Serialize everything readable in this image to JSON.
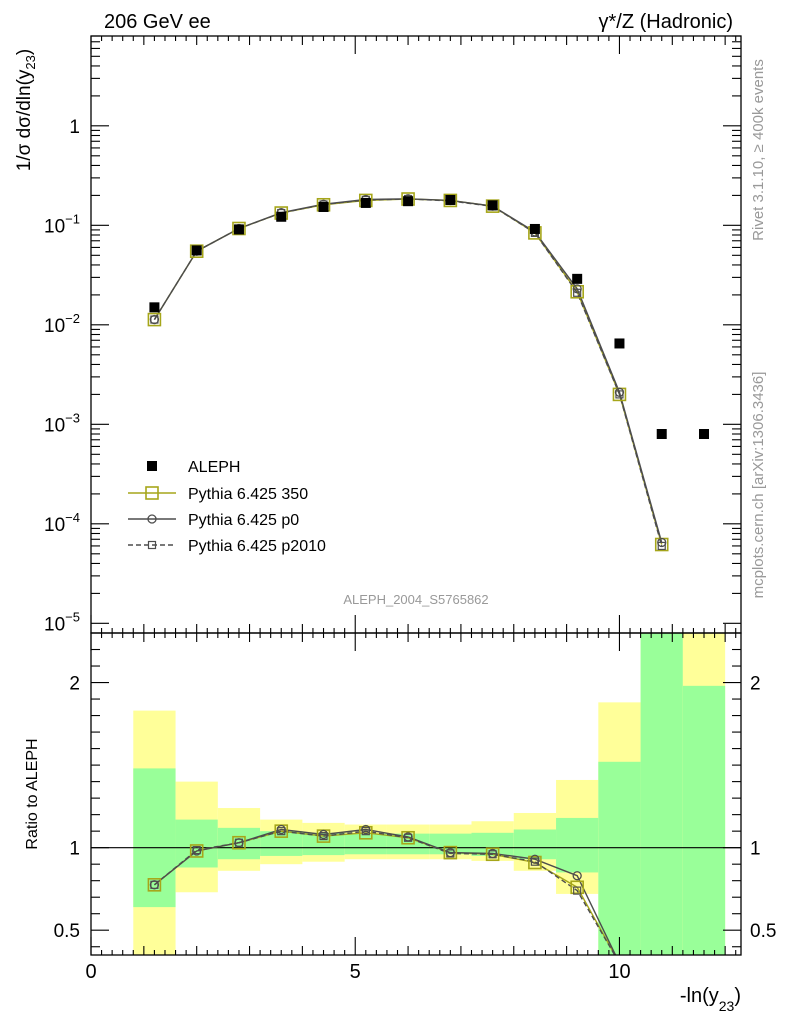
{
  "header": {
    "left": "206 GeV ee",
    "right": "γ*/Z (Hadronic)"
  },
  "side_texts": {
    "rivet": "Rivet 3.1.10, ≥ 400k events",
    "mcplots": "mcplots.cern.ch [arXiv:1306.3436]"
  },
  "watermark": "ALEPH_2004_S5765862",
  "colors": {
    "data": "#000000",
    "p350": "#a6a61a",
    "p0": "#4d4d4d",
    "p2010": "#4d4d4d",
    "band_inner": "#99ff99",
    "band_outer": "#ffff99"
  },
  "chart_data": [
    {
      "type": "line",
      "panel": "main",
      "ylabel": "1/σ  dσ/dln(y23)",
      "yscale": "log",
      "ylim": [
        8e-06,
        8
      ],
      "xlim": [
        0,
        12.3
      ],
      "y_ticks": [
        {
          "value": 1e-05,
          "label": "10",
          "exp": "−5"
        },
        {
          "value": 0.0001,
          "label": "10",
          "exp": "−4"
        },
        {
          "value": 0.001,
          "label": "10",
          "exp": "−3"
        },
        {
          "value": 0.01,
          "label": "10",
          "exp": "−2"
        },
        {
          "value": 0.1,
          "label": "10",
          "exp": "−1"
        },
        {
          "value": 1,
          "label": "1",
          "exp": ""
        }
      ],
      "series": [
        {
          "name": "ALEPH",
          "key": "data",
          "marker": "filled-square",
          "x": [
            1.2,
            2.0,
            2.8,
            3.6,
            4.4,
            5.2,
            6.0,
            6.8,
            7.6,
            8.4,
            9.2,
            10.0,
            10.8,
            11.6
          ],
          "values": [
            0.015,
            0.056,
            0.091,
            0.122,
            0.153,
            0.168,
            0.175,
            0.18,
            0.159,
            0.092,
            0.029,
            0.0065,
            0.0008,
            0.0008
          ]
        },
        {
          "name": "Pythia 6.425 350",
          "key": "p350",
          "marker": "open-square",
          "line": "solid",
          "x": [
            1.2,
            2.0,
            2.8,
            3.6,
            4.4,
            5.2,
            6.0,
            6.8,
            7.6,
            8.4,
            9.2,
            10.0,
            10.8
          ],
          "values": [
            0.0113,
            0.055,
            0.093,
            0.133,
            0.161,
            0.178,
            0.184,
            0.178,
            0.156,
            0.084,
            0.0215,
            0.002,
            6.2e-05
          ]
        },
        {
          "name": "Pythia 6.425 p0",
          "key": "p0",
          "marker": "open-circle",
          "line": "solid",
          "x": [
            1.2,
            2.0,
            2.8,
            3.6,
            4.4,
            5.2,
            6.0,
            6.8,
            7.6,
            8.4,
            9.2,
            10.0,
            10.8
          ],
          "values": [
            0.0113,
            0.055,
            0.093,
            0.134,
            0.163,
            0.182,
            0.185,
            0.178,
            0.156,
            0.086,
            0.023,
            0.0021,
            6.5e-05
          ]
        },
        {
          "name": "Pythia 6.425 p2010",
          "key": "p2010",
          "marker": "small-open-square",
          "line": "dashed",
          "x": [
            1.2,
            2.0,
            2.8,
            3.6,
            4.4,
            5.2,
            6.0,
            6.8,
            7.6,
            8.4,
            9.2,
            10.0,
            10.8
          ],
          "values": [
            0.0113,
            0.055,
            0.093,
            0.133,
            0.162,
            0.18,
            0.184,
            0.176,
            0.155,
            0.084,
            0.021,
            0.002,
            6e-05
          ]
        }
      ]
    },
    {
      "type": "line",
      "panel": "ratio",
      "ylabel": "Ratio to ALEPH",
      "xlabel": "-ln(y23)",
      "ylim": [
        0.35,
        2.3
      ],
      "xlim": [
        0,
        12.3
      ],
      "x_ticks": [
        0,
        5,
        10
      ],
      "y_ticks": [
        0.5,
        1,
        2
      ],
      "bands": {
        "edges": [
          0.8,
          1.6,
          2.4,
          3.2,
          4.0,
          4.8,
          5.6,
          6.4,
          7.2,
          8.0,
          8.8,
          9.6,
          10.4,
          11.2,
          12.0
        ],
        "inner_lo": [
          0.64,
          0.88,
          0.93,
          0.95,
          0.955,
          0.96,
          0.96,
          0.96,
          0.95,
          0.93,
          0.85,
          0.35,
          0.35,
          0.35
        ],
        "inner_hi": [
          1.48,
          1.17,
          1.12,
          1.1,
          1.09,
          1.085,
          1.085,
          1.085,
          1.09,
          1.11,
          1.18,
          1.52,
          2.3,
          1.98
        ],
        "outer_lo": [
          0.35,
          0.73,
          0.86,
          0.9,
          0.915,
          0.93,
          0.93,
          0.93,
          0.92,
          0.86,
          0.72,
          0.35,
          0.35,
          0.35
        ],
        "outer_hi": [
          1.83,
          1.4,
          1.24,
          1.17,
          1.15,
          1.14,
          1.14,
          1.14,
          1.16,
          1.21,
          1.41,
          1.88,
          2.3,
          2.3
        ]
      },
      "series": [
        {
          "key": "p350",
          "x": [
            1.2,
            2.0,
            2.8,
            3.6,
            4.4,
            5.2,
            6.0,
            6.8,
            7.6,
            8.4,
            9.2,
            10.0
          ],
          "values": [
            0.775,
            0.98,
            1.03,
            1.1,
            1.07,
            1.09,
            1.06,
            0.97,
            0.96,
            0.91,
            0.76,
            0.3
          ]
        },
        {
          "key": "p0",
          "x": [
            1.2,
            2.0,
            2.8,
            3.6,
            4.4,
            5.2,
            6.0,
            6.8,
            7.6,
            8.4,
            9.2,
            10.0
          ],
          "values": [
            0.775,
            0.98,
            1.03,
            1.11,
            1.08,
            1.11,
            1.065,
            0.97,
            0.965,
            0.93,
            0.83,
            0.3
          ]
        },
        {
          "key": "p2010",
          "x": [
            1.2,
            2.0,
            2.8,
            3.6,
            4.4,
            5.2,
            6.0,
            6.8,
            7.6,
            8.4,
            9.2,
            10.0
          ],
          "values": [
            0.775,
            0.985,
            1.03,
            1.1,
            1.07,
            1.1,
            1.06,
            0.965,
            0.96,
            0.915,
            0.74,
            0.3
          ]
        }
      ]
    }
  ]
}
